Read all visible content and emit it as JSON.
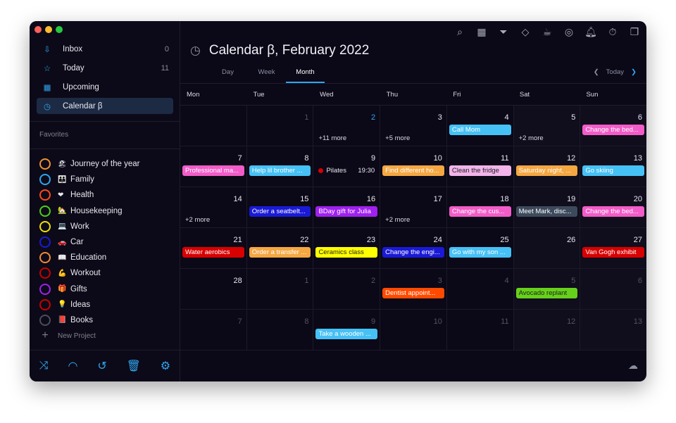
{
  "window": {
    "traffic_lights": [
      "#fe5f57",
      "#febc2e",
      "#28c840"
    ]
  },
  "sidebar": {
    "nav": [
      {
        "label": "Inbox",
        "count": "0",
        "icon": "inbox-icon"
      },
      {
        "label": "Today",
        "count": "11",
        "icon": "star-icon"
      },
      {
        "label": "Upcoming",
        "count": "",
        "icon": "calendar-grid-icon"
      },
      {
        "label": "Calendar β",
        "count": "",
        "icon": "calendar-clock-icon",
        "selected": true
      }
    ],
    "favorites_title": "Favorites",
    "projects": [
      {
        "label": "Journey of the year",
        "emoji": "🏖",
        "color": "#f0922e"
      },
      {
        "label": "Family",
        "emoji": "👪",
        "color": "#2fa6f0"
      },
      {
        "label": "Health",
        "emoji": "❤",
        "color": "#ff4a1a"
      },
      {
        "label": "Housekeeping",
        "emoji": "🏡",
        "color": "#4ccf1a"
      },
      {
        "label": "Work",
        "emoji": "💻",
        "color": "#f0e000"
      },
      {
        "label": "Car",
        "emoji": "🚗",
        "color": "#1a1ad6"
      },
      {
        "label": "Education",
        "emoji": "📖",
        "color": "#f08a3a"
      },
      {
        "label": "Workout",
        "emoji": "💪",
        "color": "#c80000"
      },
      {
        "label": "Gifts",
        "emoji": "🎁",
        "color": "#a020f0"
      },
      {
        "label": "Ideas",
        "emoji": "💡",
        "color": "#c80000"
      },
      {
        "label": "Books",
        "emoji": "📕",
        "color": "#4a4d5a"
      }
    ],
    "new_project": "New Project",
    "bottom_icons": [
      "shuffle-icon",
      "rainbow-icon",
      "history-icon",
      "trash-icon",
      "gear-icon"
    ]
  },
  "toolbar": {
    "icons": [
      "search-icon",
      "calendar-icon",
      "filter-icon",
      "tag-icon",
      "coffee-icon",
      "focus-icon",
      "bell-icon",
      "stopwatch-icon",
      "copy-icon"
    ]
  },
  "header": {
    "title": "Calendar β, February 2022"
  },
  "tabs": [
    {
      "label": "Day"
    },
    {
      "label": "Week"
    },
    {
      "label": "Month",
      "active": true
    }
  ],
  "nav": {
    "today": "Today"
  },
  "weekdays": [
    "Mon",
    "Tue",
    "Wed",
    "Thu",
    "Fri",
    "Sat",
    "Sun"
  ],
  "weeks": [
    [
      {
        "n": ""
      },
      {
        "n": "1",
        "muted": true
      },
      {
        "n": "2",
        "today": true,
        "more": "+11 more"
      },
      {
        "n": "3",
        "more": "+5 more"
      },
      {
        "n": "4",
        "events": [
          {
            "t": "Call Mom",
            "c": "#46c1f5"
          }
        ]
      },
      {
        "n": "5",
        "more": "+2 more"
      },
      {
        "n": "6",
        "events": [
          {
            "t": "Change the bed...",
            "c": "#f25cc8"
          }
        ]
      }
    ],
    [
      {
        "n": "7",
        "events": [
          {
            "t": "Professional ma...",
            "c": "#f25cc8"
          }
        ]
      },
      {
        "n": "8",
        "events": [
          {
            "t": "Help lil brother ...",
            "c": "#46c1f5"
          }
        ]
      },
      {
        "n": "9",
        "timed": {
          "t": "Pilates",
          "time": "19:30",
          "c": "#d80000"
        }
      },
      {
        "n": "10",
        "events": [
          {
            "t": "Find different ho...",
            "c": "#f5a742"
          }
        ]
      },
      {
        "n": "11",
        "events": [
          {
            "t": "Clean the fridge",
            "c": "#f2b4ea",
            "tc": "#222"
          }
        ]
      },
      {
        "n": "12",
        "events": [
          {
            "t": "Saturday night, ...",
            "c": "#f5a742"
          }
        ]
      },
      {
        "n": "13",
        "events": [
          {
            "t": "Go skiing",
            "c": "#46c1f5"
          }
        ]
      }
    ],
    [
      {
        "n": "14",
        "more": "+2 more"
      },
      {
        "n": "15",
        "events": [
          {
            "t": "Order a seatbelt...",
            "c": "#1a1ad6"
          }
        ]
      },
      {
        "n": "16",
        "events": [
          {
            "t": "BDay gift for Julia",
            "c": "#a020f0"
          }
        ]
      },
      {
        "n": "17",
        "more": "+2 more"
      },
      {
        "n": "18",
        "events": [
          {
            "t": "Change the cus...",
            "c": "#f25cc8"
          }
        ]
      },
      {
        "n": "19",
        "events": [
          {
            "t": "Meet Mark, disc...",
            "c": "#3d4a5c"
          }
        ]
      },
      {
        "n": "20",
        "events": [
          {
            "t": "Change the bed...",
            "c": "#f25cc8"
          }
        ]
      }
    ],
    [
      {
        "n": "21",
        "events": [
          {
            "t": "Water aerobics",
            "c": "#d80000"
          }
        ]
      },
      {
        "n": "22",
        "events": [
          {
            "t": "Order a transfer ...",
            "c": "#f5a742"
          }
        ]
      },
      {
        "n": "23",
        "events": [
          {
            "t": "Ceramics class",
            "c": "#ffff00",
            "tc": "#222"
          }
        ]
      },
      {
        "n": "24",
        "events": [
          {
            "t": "Change the engi...",
            "c": "#1a1ad6"
          }
        ]
      },
      {
        "n": "25",
        "events": [
          {
            "t": "Go with my son ...",
            "c": "#46c1f5"
          }
        ]
      },
      {
        "n": "26"
      },
      {
        "n": "27",
        "events": [
          {
            "t": "Van Gogh exhibit",
            "c": "#d80000"
          }
        ]
      }
    ],
    [
      {
        "n": "28"
      },
      {
        "n": "1",
        "muted": true
      },
      {
        "n": "2",
        "muted": true
      },
      {
        "n": "3",
        "muted": true,
        "events": [
          {
            "t": "Dentist appoint...",
            "c": "#ff4a00"
          }
        ]
      },
      {
        "n": "4",
        "muted": true
      },
      {
        "n": "5",
        "muted": true,
        "events": [
          {
            "t": "Avocado replant",
            "c": "#66d11a",
            "tc": "#222"
          }
        ]
      },
      {
        "n": "6",
        "muted": true
      }
    ],
    [
      {
        "n": "7",
        "muted": true
      },
      {
        "n": "8",
        "muted": true
      },
      {
        "n": "9",
        "muted": true,
        "events": [
          {
            "t": "Take a wooden ...",
            "c": "#46c1f5"
          }
        ]
      },
      {
        "n": "10",
        "muted": true
      },
      {
        "n": "11",
        "muted": true
      },
      {
        "n": "12",
        "muted": true
      },
      {
        "n": "13",
        "muted": true
      }
    ]
  ],
  "footer": {
    "icon": "cloud-icon"
  }
}
